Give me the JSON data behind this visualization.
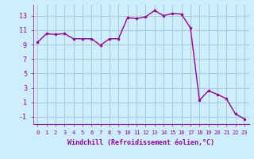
{
  "x": [
    0,
    1,
    2,
    3,
    4,
    5,
    6,
    7,
    8,
    9,
    10,
    11,
    12,
    13,
    14,
    15,
    16,
    17,
    18,
    19,
    20,
    21,
    22,
    23
  ],
  "y": [
    9.3,
    10.5,
    10.4,
    10.5,
    9.8,
    9.8,
    9.8,
    8.9,
    9.8,
    9.8,
    12.7,
    12.6,
    12.8,
    13.7,
    13.0,
    13.3,
    13.2,
    11.3,
    1.3,
    2.6,
    2.1,
    1.5,
    -0.6,
    -1.3
  ],
  "line_color": "#990099",
  "marker": ".",
  "bg_color": "#cceeff",
  "grid_color": "#aacccc",
  "xlabel": "Windchill (Refroidissement éolien,°C)",
  "xlabel_color": "#990099",
  "tick_color": "#990099",
  "ylim": [
    -2,
    14.5
  ],
  "yticks": [
    -1,
    1,
    3,
    5,
    7,
    9,
    11,
    13
  ],
  "xlim": [
    -0.5,
    23.5
  ],
  "xticks": [
    0,
    1,
    2,
    3,
    4,
    5,
    6,
    7,
    8,
    9,
    10,
    11,
    12,
    13,
    14,
    15,
    16,
    17,
    18,
    19,
    20,
    21,
    22,
    23
  ],
  "xtick_labels": [
    "0",
    "1",
    "2",
    "3",
    "4",
    "5",
    "6",
    "7",
    "8",
    "9",
    "10",
    "11",
    "12",
    "13",
    "14",
    "15",
    "16",
    "17",
    "18",
    "19",
    "20",
    "21",
    "22",
    "23"
  ]
}
